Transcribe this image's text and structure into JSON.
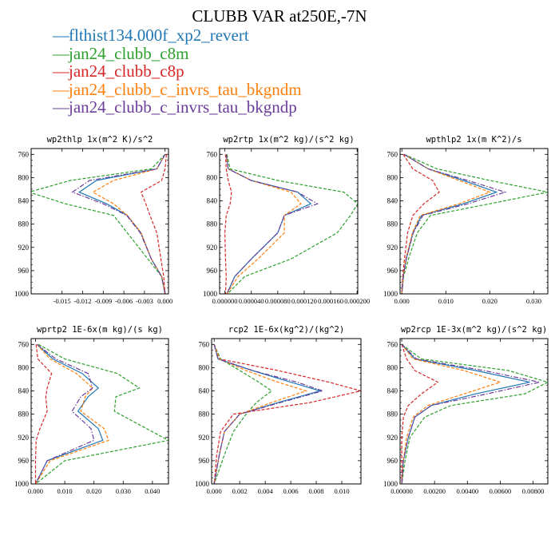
{
  "title": "CLUBB VAR at250E,-7N",
  "legend": [
    {
      "label": "flthist134.000f_xp2_revert",
      "color": "#1f77b4",
      "dash": "solid"
    },
    {
      "label": "jan24_clubb_c8m",
      "color": "#2ca02c",
      "dash": "dashed"
    },
    {
      "label": "jan24_clubb_c8p",
      "color": "#d62728",
      "dash": "dashed"
    },
    {
      "label": "jan24_clubb_c_invrs_tau_bkgndm",
      "color": "#ff7f0e",
      "dash": "dashed"
    },
    {
      "label": "jan24_clubb_c_invrs_tau_bkgndp",
      "color": "#6a3d9a",
      "dash": "dashdot"
    }
  ],
  "chart_data": [
    {
      "type": "line",
      "title": "wp2thlp   1x(m^2 K)/s^2",
      "xlim": [
        -0.0195,
        0.0005
      ],
      "ylim": [
        1000,
        750
      ],
      "xticks": [
        "-0.015",
        "-0.012",
        "-0.009",
        "-0.006",
        "-0.003",
        "0.000"
      ],
      "xtick_values": [
        -0.015,
        -0.012,
        -0.009,
        -0.006,
        -0.003,
        0.0
      ],
      "yticks": [
        "760",
        "800",
        "840",
        "880",
        "920",
        "960",
        "1000"
      ],
      "y": [
        760,
        785,
        805,
        825,
        845,
        865,
        895,
        940,
        970,
        1000
      ],
      "series": [
        {
          "values": [
            0,
            -0.0012,
            -0.01,
            -0.0125,
            -0.0085,
            -0.0055,
            -0.0035,
            -0.002,
            -0.0005,
            0
          ]
        },
        {
          "values": [
            0,
            -0.002,
            -0.0138,
            -0.0198,
            -0.0145,
            -0.0075,
            -0.0055,
            -0.0025,
            -0.0005,
            0
          ]
        },
        {
          "values": [
            0.0002,
            0,
            -0.0005,
            -0.0035,
            -0.0028,
            -0.0022,
            -0.0012,
            -0.0006,
            -0.0002,
            0
          ]
        },
        {
          "values": [
            0,
            -0.0012,
            -0.0075,
            -0.0105,
            -0.0075,
            -0.0055,
            -0.0035,
            -0.002,
            -0.0005,
            0
          ]
        },
        {
          "values": [
            0,
            -0.0012,
            -0.011,
            -0.0135,
            -0.009,
            -0.0056,
            -0.0036,
            -0.002,
            -0.0005,
            0
          ]
        }
      ]
    },
    {
      "type": "line",
      "title": "wp2rtp   1x(m^2 kg)/(s^2 kg)",
      "xlim": [
        -8e-06,
        0.000201
      ],
      "ylim": [
        1000,
        750
      ],
      "xticks": [
        "0.000000",
        "0.000040",
        "0.000080",
        "0.000120",
        "0.000160",
        "0.000200"
      ],
      "xtick_values": [
        0,
        4e-05,
        8e-05,
        0.00012,
        0.00016,
        0.0002
      ],
      "yticks": [
        "760",
        "800",
        "840",
        "880",
        "920",
        "960",
        "1000"
      ],
      "y": [
        760,
        785,
        805,
        825,
        845,
        865,
        895,
        940,
        970,
        1000
      ],
      "series": [
        {
          "values": [
            2e-06,
            5e-06,
            4e-05,
            0.00011,
            0.00013,
            9e-05,
            8e-05,
            4e-05,
            1.5e-05,
            3e-06
          ]
        },
        {
          "values": [
            3e-06,
            8e-06,
            8e-05,
            0.00018,
            0.000201,
            0.00019,
            0.00017,
            0.0001,
            3e-05,
            4e-06
          ]
        },
        {
          "values": [
            1e-06,
            2e-06,
            5e-06,
            1e-05,
            8e-06,
            2e-06,
            0,
            1e-06,
            2e-06,
            1e-06
          ]
        },
        {
          "values": [
            2e-06,
            5e-06,
            4e-05,
            0.0001,
            0.000115,
            9e-05,
            9e-05,
            5e-05,
            2e-05,
            3e-06
          ]
        },
        {
          "values": [
            2e-06,
            5e-06,
            4e-05,
            0.00011,
            0.00014,
            9e-05,
            8e-05,
            4e-05,
            1.5e-05,
            3e-06
          ]
        }
      ]
    },
    {
      "type": "line",
      "title": "wpthlp2   1x(m K^2)/s",
      "xlim": [
        -0.0004,
        0.0332
      ],
      "ylim": [
        1000,
        750
      ],
      "xticks": [
        "0.000",
        "0.010",
        "0.020",
        "0.030"
      ],
      "xtick_values": [
        0,
        0.01,
        0.02,
        0.03
      ],
      "yticks": [
        "760",
        "800",
        "840",
        "880",
        "920",
        "960",
        "1000"
      ],
      "y": [
        760,
        785,
        805,
        825,
        845,
        865,
        895,
        940,
        970,
        1000
      ],
      "series": [
        {
          "values": [
            0.0005,
            0.006,
            0.014,
            0.0215,
            0.014,
            0.0045,
            0.0025,
            0.001,
            0.0003,
            0
          ]
        },
        {
          "values": [
            0.0005,
            0.008,
            0.02,
            0.0332,
            0.02,
            0.0065,
            0.0035,
            0.0015,
            0.0004,
            0
          ]
        },
        {
          "values": [
            0.0003,
            0.0025,
            0.007,
            0.0085,
            0.005,
            0.0025,
            0.0013,
            0.0006,
            0.0002,
            0
          ]
        },
        {
          "values": [
            0.0005,
            0.006,
            0.013,
            0.02,
            0.013,
            0.0042,
            0.0024,
            0.0009,
            0.0003,
            0
          ]
        },
        {
          "values": [
            0.0005,
            0.006,
            0.015,
            0.0235,
            0.015,
            0.0048,
            0.0026,
            0.001,
            0.0003,
            0
          ]
        }
      ]
    },
    {
      "type": "line",
      "title": "wprtp2   1E-6x(m kg)/(s kg)",
      "xlim": [
        -0.0015,
        0.0455
      ],
      "ylim": [
        1000,
        750
      ],
      "xticks": [
        "0.000",
        "0.010",
        "0.020",
        "0.030",
        "0.040"
      ],
      "xtick_values": [
        0,
        0.01,
        0.02,
        0.03,
        0.04
      ],
      "yticks": [
        "760",
        "800",
        "840",
        "880",
        "920",
        "960",
        "1000"
      ],
      "y": [
        760,
        785,
        810,
        835,
        850,
        875,
        905,
        925,
        960,
        1000
      ],
      "series": [
        {
          "values": [
            0.0005,
            0.006,
            0.016,
            0.0215,
            0.018,
            0.0145,
            0.0215,
            0.023,
            0.004,
            0
          ]
        },
        {
          "values": [
            0.001,
            0.01,
            0.028,
            0.0355,
            0.0275,
            0.027,
            0.038,
            0.0455,
            0.01,
            0
          ]
        },
        {
          "values": [
            0.0002,
            0.0008,
            0.0055,
            0.004,
            0.0035,
            0.004,
            0.0015,
            0.0002,
            0,
            0
          ]
        },
        {
          "values": [
            0.0005,
            0.005,
            0.014,
            0.0195,
            0.017,
            0.0155,
            0.0235,
            0.025,
            0.005,
            0
          ]
        },
        {
          "values": [
            0.0005,
            0.007,
            0.018,
            0.0195,
            0.0155,
            0.0125,
            0.019,
            0.02,
            0.004,
            0
          ]
        }
      ]
    },
    {
      "type": "line",
      "title": "rcp2   1E-6x(kg^2)/(kg^2)",
      "xlim": [
        -0.0002,
        0.0115
      ],
      "ylim": [
        1000,
        750
      ],
      "xticks": [
        "0.000",
        "0.002",
        "0.004",
        "0.006",
        "0.008",
        "0.010"
      ],
      "xtick_values": [
        0,
        0.002,
        0.004,
        0.006,
        0.008,
        0.01
      ],
      "yticks": [
        "760",
        "800",
        "840",
        "880",
        "920",
        "960",
        "1000"
      ],
      "y": [
        760,
        785,
        805,
        825,
        840,
        860,
        880,
        910,
        950,
        1000
      ],
      "series": [
        {
          "values": [
            0,
            0.0003,
            0.003,
            0.006,
            0.0083,
            0.005,
            0.002,
            0.0008,
            0.0004,
            0
          ]
        },
        {
          "values": [
            0,
            0.0005,
            0.002,
            0.0035,
            0.0045,
            0.0033,
            0.0025,
            0.0015,
            0.0008,
            0
          ]
        },
        {
          "values": [
            0,
            0.0004,
            0.005,
            0.009,
            0.0115,
            0.0075,
            0.0015,
            0.0005,
            0.0002,
            0
          ]
        },
        {
          "values": [
            0,
            0.0004,
            0.0025,
            0.005,
            0.0072,
            0.0045,
            0.002,
            0.0008,
            0.0004,
            0
          ]
        },
        {
          "values": [
            0,
            0.0003,
            0.003,
            0.0065,
            0.0085,
            0.0052,
            0.002,
            0.0008,
            0.0004,
            0
          ]
        }
      ]
    },
    {
      "type": "line",
      "title": "wp2rcp   1E-3x(m^2 kg)/(s^2 kg)",
      "xlim": [
        -0.0001,
        0.0089
      ],
      "ylim": [
        1000,
        750
      ],
      "xticks": [
        "0.00000",
        "0.00200",
        "0.00400",
        "0.00600",
        "0.00800"
      ],
      "xtick_values": [
        0,
        0.002,
        0.004,
        0.006,
        0.008
      ],
      "yticks": [
        "760",
        "800",
        "840",
        "880",
        "920",
        "960",
        "1000"
      ],
      "y": [
        760,
        785,
        805,
        825,
        845,
        865,
        885,
        920,
        960,
        1000
      ],
      "series": [
        {
          "values": [
            0,
            0.0008,
            0.0045,
            0.0078,
            0.0045,
            0.0018,
            0.0008,
            0.0004,
            0.0001,
            0
          ]
        },
        {
          "values": [
            0,
            0.0012,
            0.0065,
            0.0089,
            0.0075,
            0.003,
            0.0014,
            0.0005,
            0.0002,
            0
          ]
        },
        {
          "values": [
            0,
            0.0003,
            0.0008,
            0.0022,
            0.0012,
            0.0004,
            0.0001,
            0,
            0,
            0
          ]
        },
        {
          "values": [
            0,
            0.0007,
            0.0038,
            0.006,
            0.0038,
            0.0016,
            0.0007,
            0.0003,
            0.0001,
            0
          ]
        },
        {
          "values": [
            0,
            0.0009,
            0.005,
            0.0084,
            0.0052,
            0.0018,
            0.0008,
            0.0004,
            0.0001,
            0
          ]
        }
      ]
    }
  ]
}
